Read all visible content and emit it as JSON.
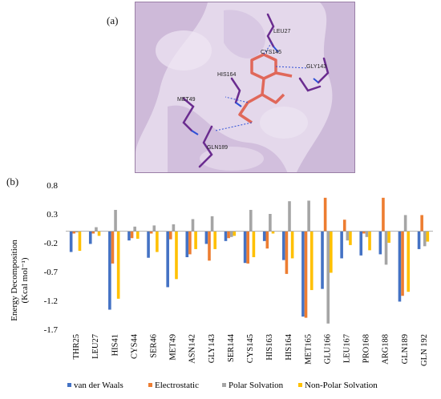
{
  "panel_a": {
    "label": "(a)",
    "residue_labels": [
      "LEU27",
      "CYS145",
      "GLY143",
      "HIS164",
      "MET49",
      "GLN189"
    ]
  },
  "panel_b": {
    "label": "(b)"
  },
  "colors": {
    "van_der_waals": "#4472c4",
    "electrostatic": "#ed7d31",
    "polar_solvation": "#a5a5a5",
    "non_polar_solvation": "#ffc000",
    "surface": "#d9c9e3",
    "surface_dark": "#b59cc4",
    "residue_stick": "#6a2c8f",
    "ligand": "#e0685a"
  },
  "chart_data": {
    "type": "bar",
    "title": "",
    "xlabel": "",
    "ylabel_line1": "Energy Decomposition",
    "ylabel_line2": "(Kcal mol⁻¹)",
    "ylim": [
      -1.7,
      0.8
    ],
    "yticks": [
      0.8,
      0.3,
      -0.2,
      -0.7,
      -1.2,
      -1.7
    ],
    "ytick_labels": [
      "0.8",
      "0.3",
      "-0.2",
      "-0.7",
      "-1.2",
      "-1.7"
    ],
    "grid": false,
    "legend_position": "bottom",
    "categories": [
      "THR25",
      "LEU27",
      "HIS41",
      "CYS44",
      "SER46",
      "MET49",
      "ASN142",
      "GLY143",
      "SER144",
      "CYS145",
      "HIS163",
      "HIS164",
      "MET165",
      "GLU166",
      "LEU167",
      "PRO168",
      "ARG188",
      "GLN189",
      "GLN 192"
    ],
    "series": [
      {
        "name": "van der Waals",
        "values": [
          -0.36,
          -0.22,
          -1.36,
          -0.16,
          -0.46,
          -0.97,
          -0.45,
          -0.22,
          -0.17,
          -0.55,
          -0.17,
          -0.5,
          -1.48,
          -1.0,
          -0.47,
          -0.42,
          -0.4,
          -1.22,
          -0.31
        ]
      },
      {
        "name": "Electrostatic",
        "values": [
          -0.04,
          -0.04,
          -0.56,
          -0.12,
          -0.04,
          -0.14,
          -0.4,
          -0.51,
          -0.12,
          -0.56,
          -0.3,
          -0.74,
          -1.5,
          0.58,
          0.2,
          -0.04,
          0.58,
          -1.12,
          0.28
        ]
      },
      {
        "name": "Polar Solvation",
        "values": [
          -0.02,
          0.07,
          0.37,
          0.08,
          0.1,
          0.12,
          0.21,
          0.26,
          -0.1,
          0.37,
          0.3,
          0.52,
          0.53,
          -1.6,
          -0.16,
          -0.1,
          -0.58,
          0.28,
          -0.26
        ]
      },
      {
        "name": "Non-Polar Solvation",
        "values": [
          -0.34,
          -0.08,
          -1.17,
          -0.13,
          -0.36,
          -0.83,
          -0.31,
          -0.31,
          -0.08,
          -0.45,
          -0.04,
          -0.47,
          -1.02,
          -0.72,
          -0.24,
          -0.33,
          -0.2,
          -1.05,
          -0.18
        ]
      }
    ]
  }
}
